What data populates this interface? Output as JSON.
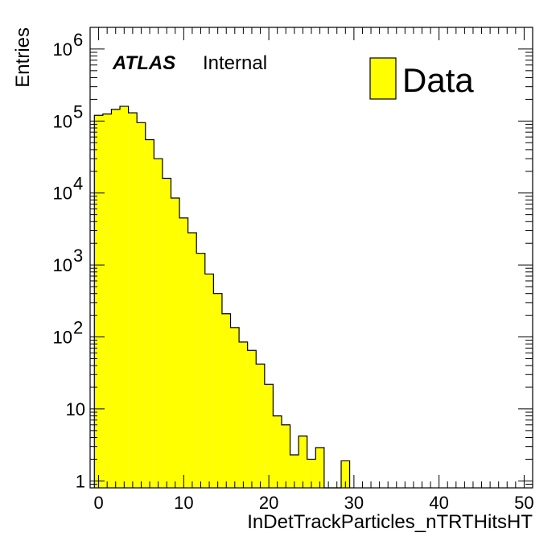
{
  "chart_data": {
    "type": "bar",
    "histogram": true,
    "xlabel": "InDetTrackParticles_nTRTHitsHT",
    "ylabel": "Entries",
    "xlim": [
      -1,
      51
    ],
    "ylim": [
      0.8,
      2000000
    ],
    "yscale": "log",
    "grid": false,
    "legend_position": "top-right",
    "experiment_label": "ATLAS",
    "status_label": "Internal",
    "fill_color": "#ffff00",
    "line_color": "#000000",
    "bin_width": 1,
    "x_ticks": [
      "0",
      "10",
      "20",
      "30",
      "40",
      "50"
    ],
    "y_tick_labels": [
      {
        "value": 1,
        "base": "1",
        "exp": ""
      },
      {
        "value": 10,
        "base": "10",
        "exp": ""
      },
      {
        "value": 100,
        "base": "10",
        "exp": "2"
      },
      {
        "value": 1000,
        "base": "10",
        "exp": "3"
      },
      {
        "value": 10000,
        "base": "10",
        "exp": "4"
      },
      {
        "value": 100000,
        "base": "10",
        "exp": "5"
      },
      {
        "value": 1000000,
        "base": "10",
        "exp": "6"
      }
    ],
    "series": [
      {
        "name": "Data",
        "bins_low_edge": [
          -0.5,
          0.5,
          1.5,
          2.5,
          3.5,
          4.5,
          5.5,
          6.5,
          7.5,
          8.5,
          9.5,
          10.5,
          11.5,
          12.5,
          13.5,
          14.5,
          15.5,
          16.5,
          17.5,
          18.5,
          19.5,
          20.5,
          21.5,
          22.5,
          23.5,
          24.5,
          25.5,
          26.5,
          27.5,
          28.5
        ],
        "values": [
          120000,
          125000,
          145000,
          160000,
          130000,
          95000,
          55000,
          30000,
          16000,
          8500,
          4500,
          2800,
          1450,
          750,
          400,
          210,
          135,
          85,
          65,
          42,
          22,
          8,
          6,
          2.3,
          4.2,
          2,
          2.9,
          0,
          0,
          1.9
        ]
      }
    ]
  }
}
